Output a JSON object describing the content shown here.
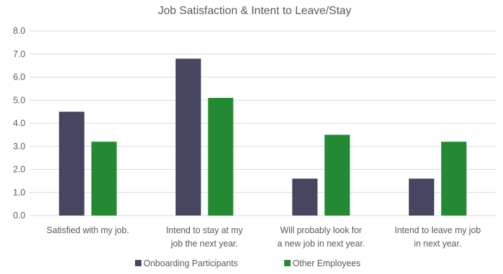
{
  "chart_data": {
    "type": "bar",
    "title": "Job Satisfaction & Intent to Leave/Stay",
    "categories": [
      [
        "Satisfied with my job."
      ],
      [
        "Intend to stay at my",
        "job the next year."
      ],
      [
        "Will probably look for",
        "a new job in next year."
      ],
      [
        "Intend to leave my job",
        "in next year."
      ]
    ],
    "series": [
      {
        "name": "Onboarding Participants",
        "color": "#474661",
        "values": [
          4.5,
          6.8,
          1.6,
          1.6
        ]
      },
      {
        "name": "Other Employees",
        "color": "#238a33",
        "values": [
          3.2,
          5.1,
          3.5,
          3.2
        ]
      }
    ],
    "ylim": [
      0,
      8
    ],
    "yticks": [
      "0.0",
      "1.0",
      "2.0",
      "3.0",
      "4.0",
      "5.0",
      "6.0",
      "7.0",
      "8.0"
    ],
    "grid": true,
    "legend": "bottom"
  }
}
